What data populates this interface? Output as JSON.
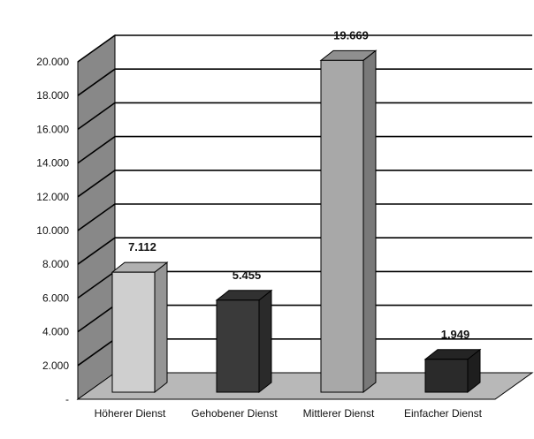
{
  "chart_data": {
    "type": "bar",
    "title": "",
    "xlabel": "",
    "ylabel": "",
    "categories": [
      "Höherer Dienst",
      "Gehobener Dienst",
      "Mittlerer Dienst",
      "Einfacher Dienst"
    ],
    "values": [
      7112,
      5455,
      19669,
      1949
    ],
    "value_labels": [
      "7.112",
      "5.455",
      "19.669",
      "1.949"
    ],
    "ylim": [
      0,
      20000
    ],
    "yticks": [
      0,
      2000,
      4000,
      6000,
      8000,
      10000,
      12000,
      14000,
      16000,
      18000,
      20000
    ],
    "ytick_labels": [
      "-",
      "2.000",
      "4.000",
      "6.000",
      "8.000",
      "10.000",
      "12.000",
      "14.000",
      "16.000",
      "18.000",
      "20.000"
    ],
    "grid": true,
    "legend": "none",
    "style": "3d",
    "colors": {
      "bars": [
        "#cfcfcf",
        "#3a3a3a",
        "#a8a8a8",
        "#2a2a2a"
      ],
      "wall_left": "#888888",
      "floor": "#b8b8b8",
      "gridline": "#000000"
    }
  }
}
